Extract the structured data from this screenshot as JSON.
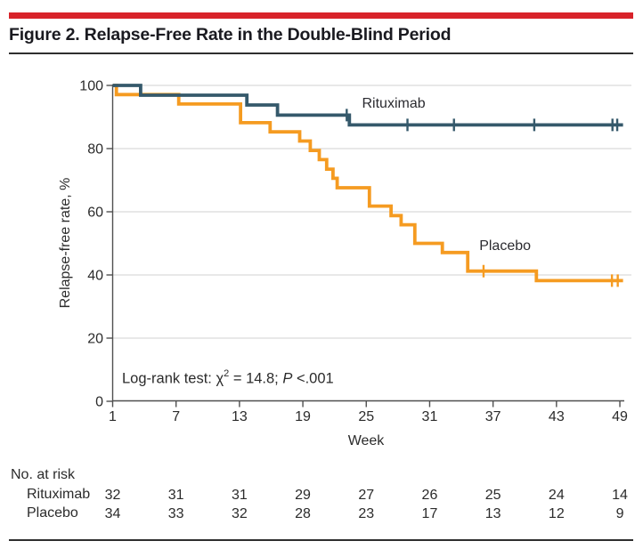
{
  "figure": {
    "title": "Figure 2. Relapse-Free Rate in the Double-Blind Period",
    "accent_color": "#D8232A",
    "divider_color": "#2E2E2E"
  },
  "chart_data": {
    "type": "line",
    "subtype": "kaplan-meier-step",
    "title": "Figure 2. Relapse-Free Rate in the Double-Blind Period",
    "xlabel": "Week",
    "ylabel": "Relapse-free rate, %",
    "x_ticks": [
      1,
      7,
      13,
      19,
      25,
      31,
      37,
      43,
      49
    ],
    "y_ticks": [
      0,
      20,
      40,
      60,
      80,
      100
    ],
    "xlim": [
      1,
      49.3
    ],
    "ylim": [
      0,
      100
    ],
    "grid": "horizontal-only",
    "gridline_color": "#DBDBDB",
    "axis_color": "#4F4F4F",
    "annotation": {
      "prefix": "Log-rank test: χ",
      "sup": "2",
      "mid": " = 14.8; ",
      "italic": "P",
      "suffix": " <.001"
    },
    "series": [
      {
        "name": "Rituximab",
        "color": "#35596B",
        "label_pos": {
          "week": 24.6,
          "value": 96.6
        },
        "steps": [
          [
            1,
            100
          ],
          [
            3.65,
            96.9
          ],
          [
            13.7,
            93.8
          ],
          [
            16.6,
            90.6
          ],
          [
            23.4,
            87.5
          ]
        ],
        "end_week": 49.3,
        "censor_weeks": [
          23.15,
          28.9,
          33.3,
          40.9,
          48.3,
          48.75
        ]
      },
      {
        "name": "Placebo",
        "color": "#F59B21",
        "label_pos": {
          "week": 35.7,
          "value": 51.5
        },
        "steps": [
          [
            1,
            100
          ],
          [
            1.35,
            97.1
          ],
          [
            7.25,
            94.1
          ],
          [
            13.1,
            88.2
          ],
          [
            15.9,
            85.3
          ],
          [
            18.7,
            82.4
          ],
          [
            19.7,
            79.4
          ],
          [
            20.55,
            76.5
          ],
          [
            21.25,
            73.5
          ],
          [
            21.85,
            70.6
          ],
          [
            22.25,
            67.6
          ],
          [
            25.3,
            61.8
          ],
          [
            27.35,
            58.8
          ],
          [
            28.3,
            55.9
          ],
          [
            29.6,
            50.0
          ],
          [
            32.2,
            47.1
          ],
          [
            34.6,
            41.2
          ],
          [
            41.1,
            38.2
          ]
        ],
        "end_week": 49.3,
        "censor_weeks": [
          36.1,
          48.25,
          48.8
        ]
      }
    ],
    "no_at_risk": {
      "header": "No. at risk",
      "weeks": [
        1,
        7,
        13,
        19,
        25,
        31,
        37,
        43,
        49
      ],
      "rows": [
        {
          "label": "Rituximab",
          "values": [
            32,
            31,
            31,
            29,
            27,
            26,
            25,
            24,
            14
          ]
        },
        {
          "label": "Placebo",
          "values": [
            34,
            33,
            32,
            28,
            23,
            17,
            13,
            12,
            9
          ]
        }
      ]
    }
  }
}
